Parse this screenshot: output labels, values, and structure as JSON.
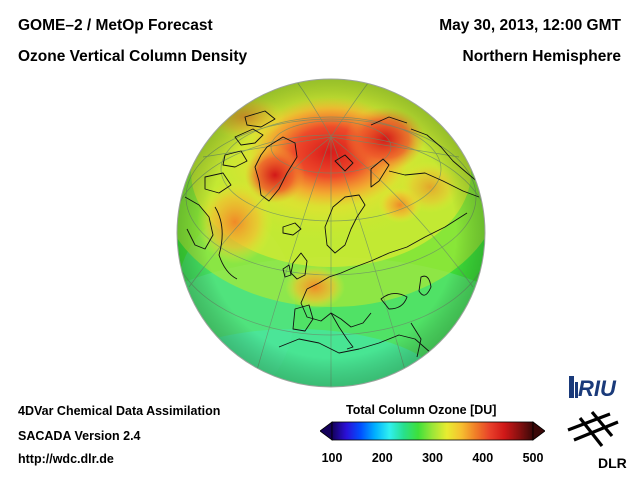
{
  "header": {
    "title_left_1": "GOME–2 / MetOp Forecast",
    "title_left_2": "Ozone Vertical Column Density",
    "title_right_1": "May 30, 2013, 12:00 GMT",
    "title_right_2": "Northern Hemisphere"
  },
  "footer": {
    "line1": "4DVar Chemical Data Assimilation",
    "line2": "SACADA Version 2.4",
    "line3": "http://wdc.dlr.de"
  },
  "colorbar": {
    "title": "Total Column Ozone [DU]",
    "ticks": [
      "100",
      "200",
      "300",
      "400",
      "500"
    ],
    "range": [
      100,
      500
    ],
    "colors": [
      "#14005a",
      "#2a10d8",
      "#0050ff",
      "#00b0ff",
      "#30f0f0",
      "#28e08c",
      "#3ee03a",
      "#9ce638",
      "#e8ec30",
      "#f6c030",
      "#f07e28",
      "#e8402a",
      "#d01818",
      "#8a1010",
      "#3a0808"
    ]
  },
  "logos": {
    "riu": "RIU",
    "dlr": "DLR"
  },
  "map": {
    "projection": "orthographic",
    "hemisphere": "Northern Hemisphere",
    "background_color": "#3ee03a",
    "coastline_color": "#111111",
    "grid_color": "#6a8a6a"
  }
}
